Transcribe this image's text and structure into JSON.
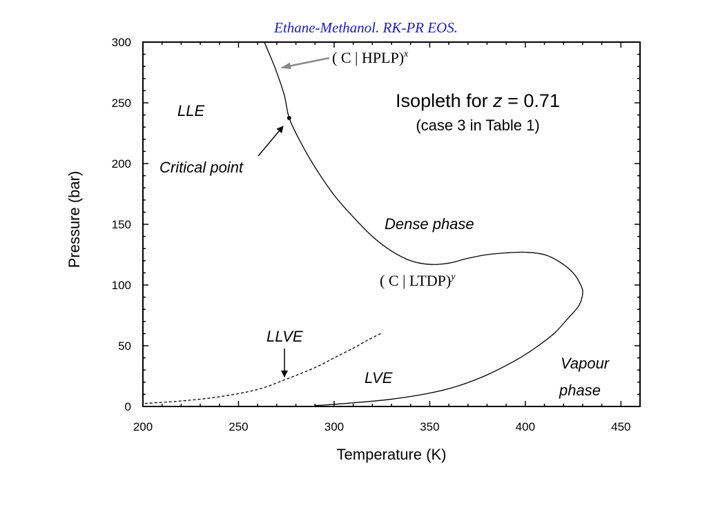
{
  "chart_data": {
    "type": "line",
    "title": "Ethane-Methanol. RK-PR EOS.",
    "xlabel": "Temperature (K)",
    "ylabel": "Pressure (bar)",
    "xlim": [
      200,
      460
    ],
    "ylim": [
      0,
      300
    ],
    "x_ticks": [
      200,
      250,
      300,
      350,
      400,
      450
    ],
    "y_ticks": [
      0,
      50,
      100,
      150,
      200,
      250,
      300
    ],
    "x_minor_step": 10,
    "y_minor_step": 10,
    "grid": false,
    "series": [
      {
        "style": "solid",
        "points": [
          [
            263.5,
            300
          ],
          [
            267,
            287
          ],
          [
            270,
            275
          ],
          [
            274,
            256
          ],
          [
            276.5,
            237.5
          ],
          [
            282,
            219
          ],
          [
            290,
            197
          ],
          [
            300,
            174
          ],
          [
            310,
            156
          ],
          [
            320,
            140
          ],
          [
            330,
            128
          ],
          [
            340,
            120
          ],
          [
            350,
            117
          ],
          [
            360,
            118
          ],
          [
            370,
            122
          ],
          [
            380,
            125
          ],
          [
            390,
            126.5
          ],
          [
            400,
            127
          ],
          [
            410,
            125
          ],
          [
            418,
            119
          ],
          [
            425,
            110
          ],
          [
            429,
            100
          ],
          [
            430,
            93
          ],
          [
            428,
            83
          ],
          [
            422,
            72
          ],
          [
            415,
            60
          ],
          [
            405,
            48
          ],
          [
            395,
            38
          ],
          [
            380,
            26
          ],
          [
            365,
            17
          ],
          [
            350,
            11
          ],
          [
            330,
            6
          ],
          [
            310,
            3
          ],
          [
            295,
            1.2
          ],
          [
            290,
            0.8
          ]
        ]
      },
      {
        "style": "dashed",
        "points": [
          [
            201,
            2.5
          ],
          [
            220,
            4.5
          ],
          [
            240,
            8
          ],
          [
            260,
            14
          ],
          [
            275,
            22.5
          ],
          [
            290,
            32
          ],
          [
            300,
            40
          ],
          [
            310,
            48
          ],
          [
            318,
            55
          ],
          [
            325,
            60.5
          ]
        ]
      }
    ],
    "markers": [
      {
        "name": "critical-point",
        "x": 276.5,
        "y": 237.5
      }
    ],
    "annotations": {
      "hplp_main": "( C | HPLP)",
      "hplp_sup": "x",
      "ltdp_main": "( C | LTDP)",
      "ltdp_sup": "y",
      "isopleth_prefix": "Isopleth for ",
      "isopleth_var": "z",
      "isopleth_suffix": " = 0.71",
      "case_note": "(case 3 in Table 1)",
      "lle": "LLE",
      "critical_point": "Critical point",
      "dense_phase": "Dense phase",
      "llve": "LLVE",
      "lve": "LVE",
      "vapour_line1": "Vapour",
      "vapour_line2": "phase"
    }
  }
}
